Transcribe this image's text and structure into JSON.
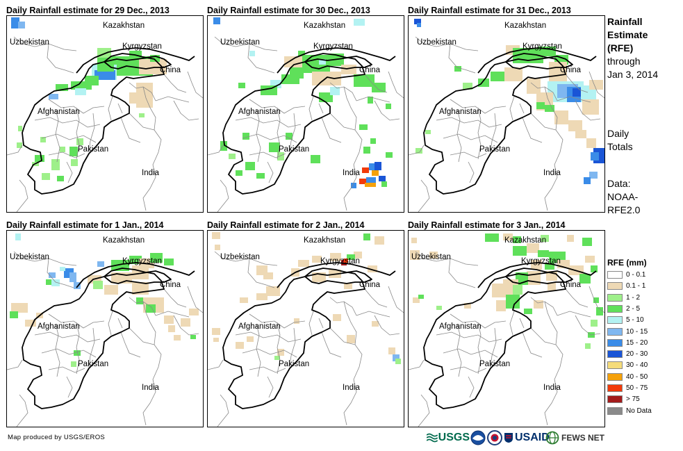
{
  "panels": [
    {
      "title": "Daily Rainfall estimate for 29 Dec., 2013"
    },
    {
      "title": "Daily Rainfall estimate for 30 Dec., 2013"
    },
    {
      "title": "Daily Rainfall estimate for 31 Dec., 2013"
    },
    {
      "title": "Daily Rainfall estimate for 1 Jan., 2014"
    },
    {
      "title": "Daily Rainfall estimate for 2 Jan., 2014"
    },
    {
      "title": "Daily Rainfall estimate for 3 Jan., 2014"
    }
  ],
  "map_labels": {
    "kazakhstan": "Kazakhstan",
    "uzbekistan": "Uzbekistan",
    "kyrgyzstan": "Kyrgyzstan",
    "china": "China",
    "afghanistan": "Afghanistan",
    "pakistan": "Pakistan",
    "india": "India"
  },
  "side": {
    "title_lines": [
      "Rainfall",
      "Estimate",
      "(RFE)"
    ],
    "through_lines": [
      "through",
      "Jan 3, 2014"
    ],
    "daily_lines": [
      "Daily",
      "Totals"
    ],
    "data_lines": [
      "Data:",
      "NOAA-",
      "RFE2.0"
    ]
  },
  "legend": {
    "title": "RFE (mm)",
    "items": [
      {
        "label": "0 - 0.1",
        "color": "#ffffff"
      },
      {
        "label": "0.1 - 1",
        "color": "#eed9b5"
      },
      {
        "label": "1 - 2",
        "color": "#9ef08a"
      },
      {
        "label": "2 - 5",
        "color": "#5fe05a"
      },
      {
        "label": "5 - 10",
        "color": "#b3f2f2"
      },
      {
        "label": "10 - 15",
        "color": "#7fb7f0"
      },
      {
        "label": "15 - 20",
        "color": "#3a8ce8"
      },
      {
        "label": "20 - 30",
        "color": "#1a55d6"
      },
      {
        "label": "30 - 40",
        "color": "#f5dc7a"
      },
      {
        "label": "40 - 50",
        "color": "#f5a10a"
      },
      {
        "label": "50 - 75",
        "color": "#f23a0a"
      },
      {
        "label": "> 75",
        "color": "#a31b1b"
      },
      {
        "label": "No Data",
        "color": "#8a8a8a"
      }
    ]
  },
  "footer": {
    "credit": "Map produced by USGS/EROS"
  },
  "logos": {
    "usgs": "USGS",
    "usaid": "USAID",
    "fewsnet": "FEWS NET"
  }
}
